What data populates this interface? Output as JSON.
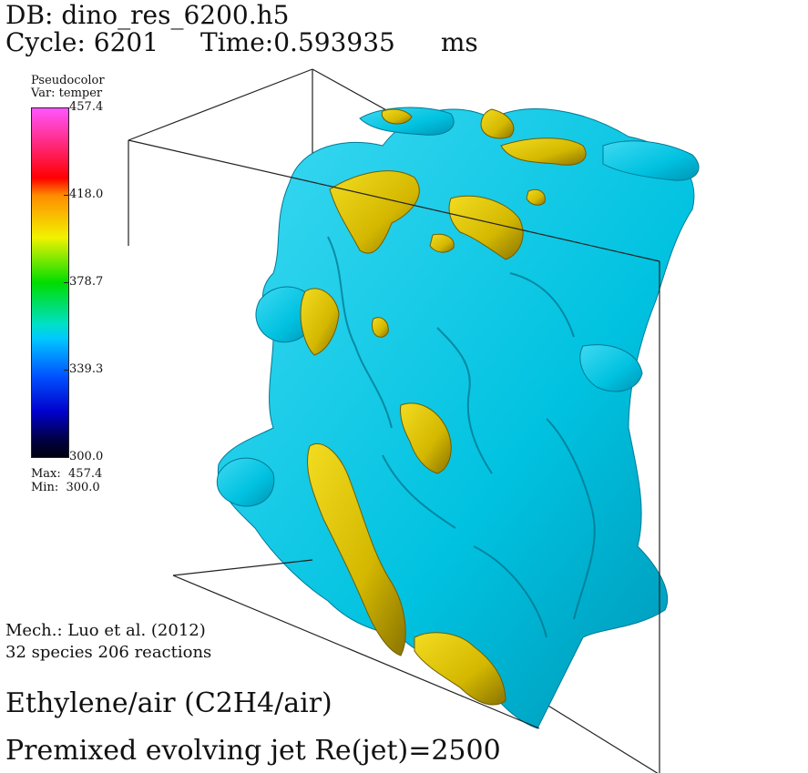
{
  "header": {
    "db": "DB: dino_res_6200.h5",
    "cycle": "Cycle: 6201",
    "time": "Time:0.593935",
    "unit": "ms"
  },
  "legend": {
    "title": "Pseudocolor",
    "variable": "Var: temper",
    "ticks": [
      "457.4",
      "418.0",
      "378.7",
      "339.3",
      "300.0"
    ],
    "max": "Max:  457.4",
    "min": "Min:  300.0"
  },
  "colors": {
    "isosurface_cool": "#00c4e0",
    "isosurface_hot": "#d9c000",
    "box_edge": "#222222"
  },
  "footer": {
    "mechanism": "Mech.: Luo et al. (2012)",
    "species": "32 species 206 reactions",
    "fuel": "Ethylene/air (C2H4/air)",
    "jet": "Premixed evolving jet Re(jet)=2500"
  }
}
